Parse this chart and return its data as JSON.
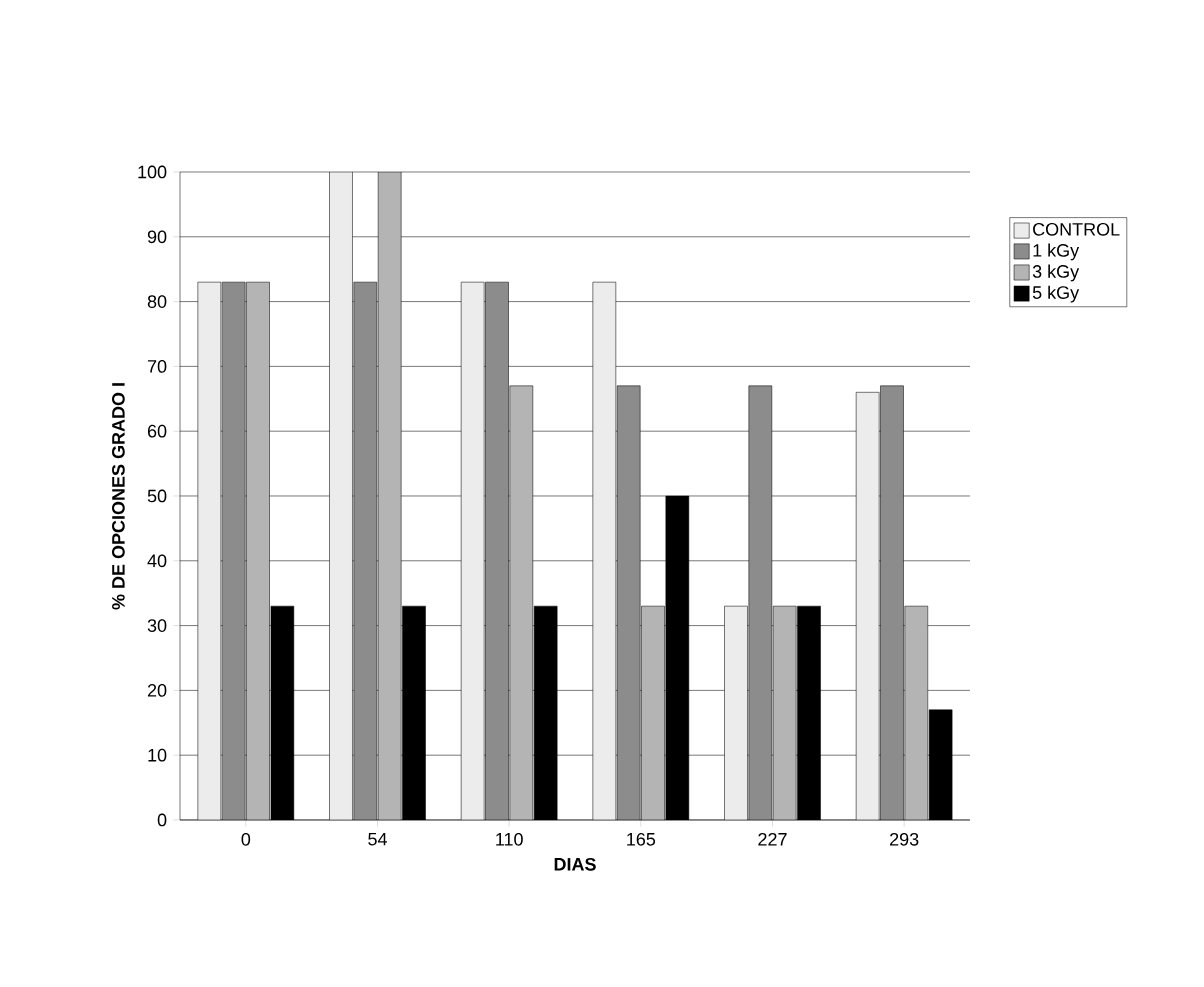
{
  "chart_data": {
    "type": "bar",
    "xlabel": "DIAS",
    "ylabel": "%  DE OPCIONES GRADO I",
    "categories": [
      "0",
      "54",
      "110",
      "165",
      "227",
      "293"
    ],
    "series": [
      {
        "name": "CONTROL",
        "color": "#ececec",
        "values": [
          83,
          100,
          83,
          83,
          33,
          66
        ]
      },
      {
        "name": "1 kGy",
        "color": "#8c8c8c",
        "values": [
          83,
          83,
          83,
          67,
          67,
          67
        ]
      },
      {
        "name": "3 kGy",
        "color": "#b4b4b4",
        "values": [
          83,
          100,
          67,
          33,
          33,
          33
        ]
      },
      {
        "name": "5 kGy",
        "color": "#000000",
        "values": [
          33,
          33,
          33,
          50,
          33,
          17
        ]
      }
    ],
    "ylim": [
      0,
      100
    ],
    "yticks": [
      0,
      10,
      20,
      30,
      40,
      50,
      60,
      70,
      80,
      90,
      100
    ],
    "grid": "y",
    "legend": "right"
  }
}
